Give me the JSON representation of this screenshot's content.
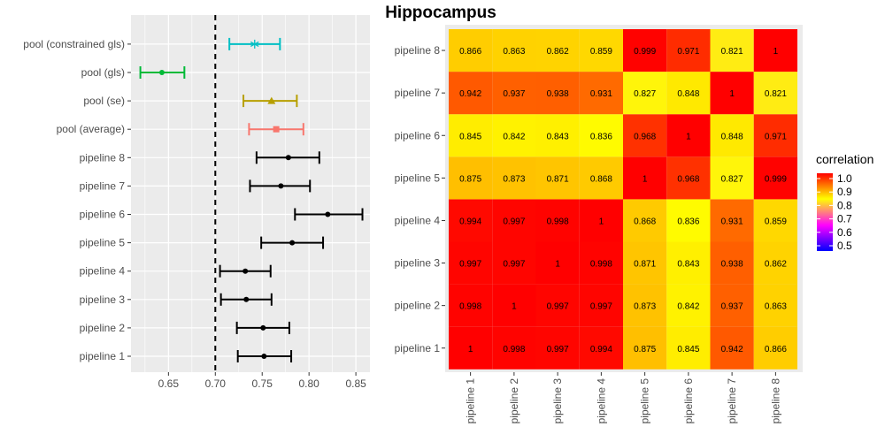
{
  "chart_data": [
    {
      "type": "forest",
      "categories": [
        "pipeline 1",
        "pipeline 2",
        "pipeline 3",
        "pipeline 4",
        "pipeline 5",
        "pipeline 6",
        "pipeline 7",
        "pipeline 8",
        "pool (average)",
        "pool (se)",
        "pool (gls)",
        "pool (constrained gls)"
      ],
      "estimates": [
        0.752,
        0.751,
        0.733,
        0.732,
        0.782,
        0.82,
        0.77,
        0.778,
        0.765,
        0.76,
        0.643,
        0.742
      ],
      "lower": [
        0.724,
        0.723,
        0.706,
        0.705,
        0.749,
        0.785,
        0.737,
        0.744,
        0.736,
        0.73,
        0.62,
        0.715
      ],
      "upper": [
        0.781,
        0.779,
        0.76,
        0.759,
        0.815,
        0.857,
        0.801,
        0.811,
        0.794,
        0.787,
        0.667,
        0.769
      ],
      "colors": [
        "#000000",
        "#000000",
        "#000000",
        "#000000",
        "#000000",
        "#000000",
        "#000000",
        "#000000",
        "#F8766D",
        "#B79F00",
        "#00BA38",
        "#00BFC4"
      ],
      "markers": [
        "dot",
        "dot",
        "dot",
        "dot",
        "dot",
        "dot",
        "dot",
        "dot",
        "square",
        "triangle",
        "dot",
        "asterisk"
      ],
      "reference_line": 0.7,
      "xlim": [
        0.61,
        0.865
      ],
      "xticks": [
        "0.65",
        "0.70",
        "0.75",
        "0.80",
        "0.85"
      ],
      "grid": true
    },
    {
      "type": "heatmap",
      "title": "Hippocampus",
      "labels": [
        "pipeline 1",
        "pipeline 2",
        "pipeline 3",
        "pipeline 4",
        "pipeline 5",
        "pipeline 6",
        "pipeline 7",
        "pipeline 8"
      ],
      "values": [
        [
          "1",
          "0.998",
          "0.997",
          "0.994",
          "0.875",
          "0.845",
          "0.942",
          "0.866"
        ],
        [
          "0.998",
          "1",
          "0.997",
          "0.997",
          "0.873",
          "0.842",
          "0.937",
          "0.863"
        ],
        [
          "0.997",
          "0.997",
          "1",
          "0.998",
          "0.871",
          "0.843",
          "0.938",
          "0.862"
        ],
        [
          "0.994",
          "0.997",
          "0.998",
          "1",
          "0.868",
          "0.836",
          "0.931",
          "0.859"
        ],
        [
          "0.875",
          "0.873",
          "0.871",
          "0.868",
          "1",
          "0.968",
          "0.827",
          "0.999"
        ],
        [
          "0.845",
          "0.842",
          "0.843",
          "0.836",
          "0.968",
          "1",
          "0.848",
          "0.971"
        ],
        [
          "0.942",
          "0.937",
          "0.938",
          "0.931",
          "0.827",
          "0.848",
          "1",
          "0.821"
        ],
        [
          "0.866",
          "0.863",
          "0.862",
          "0.859",
          "0.999",
          "0.971",
          "0.821",
          "1"
        ]
      ],
      "legend": {
        "title": "correlation",
        "ticks": [
          "1.0",
          "0.9",
          "0.8",
          "0.7",
          "0.6",
          "0.5"
        ],
        "range": [
          0.5,
          1.0
        ],
        "colors": [
          "#0000FF",
          "#FF00FF",
          "#FFFF00",
          "#FF0000"
        ],
        "placement": "right"
      }
    }
  ]
}
